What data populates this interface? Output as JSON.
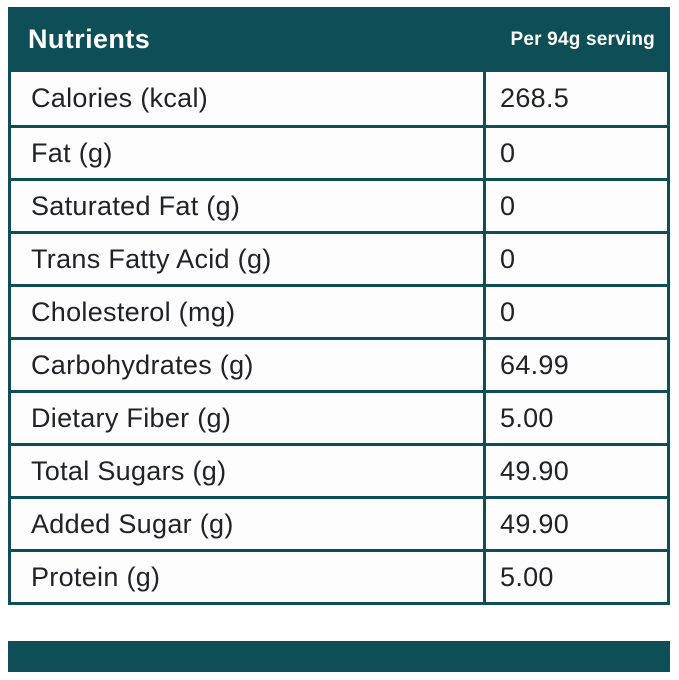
{
  "colors": {
    "teal": "#0d4e57",
    "text": "#202226",
    "cell_bg": "#fdfdfd",
    "header_text": "#ffffff"
  },
  "chart_data": {
    "type": "table",
    "title": "Nutrients",
    "columns": [
      "Nutrients",
      "Per 94g serving"
    ],
    "serving_header": "Per 94g serving",
    "rows": [
      {
        "label": "Calories (kcal)",
        "value": "268.5"
      },
      {
        "label": "Fat (g)",
        "value": "0"
      },
      {
        "label": "Saturated Fat (g)",
        "value": "0"
      },
      {
        "label": "Trans Fatty Acid (g)",
        "value": "0"
      },
      {
        "label": "Cholesterol (mg)",
        "value": "0"
      },
      {
        "label": "Carbohydrates (g)",
        "value": "64.99"
      },
      {
        "label": "Dietary Fiber (g)",
        "value": "5.00"
      },
      {
        "label": "Total Sugars (g)",
        "value": "49.90"
      },
      {
        "label": "Added Sugar (g)",
        "value": "49.90"
      },
      {
        "label": "Protein (g)",
        "value": "5.00"
      }
    ]
  }
}
